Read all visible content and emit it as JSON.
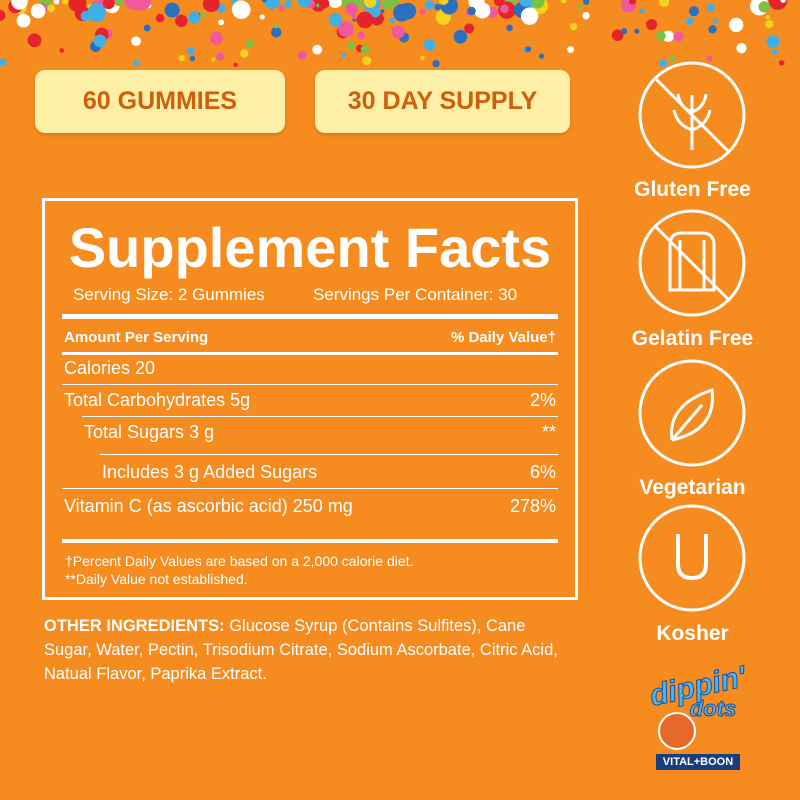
{
  "badges": [
    "60 GUMMIES",
    "30 DAY SUPPLY"
  ],
  "facts": {
    "title": "Supplement Facts",
    "serving_size": "Serving Size: 2 Gummies",
    "servings_per_container": "Servings Per Container: 30",
    "header": {
      "amount": "Amount Per Serving",
      "daily_value": "% Daily Value†"
    },
    "rows": [
      [
        "Calories 20",
        null
      ],
      [
        "Total Carbohydrates 5g",
        "2%"
      ],
      [
        "Total Sugars 3 g",
        "**"
      ],
      [
        "Includes 3 g Added Sugars",
        "6%"
      ],
      [
        "Vitamin C (as ascorbic acid) 250 mg",
        "278%"
      ]
    ],
    "footnotes": [
      "†Percent Daily Values are based on a 2,000 calorie diet.",
      "**Daily Value not established."
    ]
  },
  "ingredients": {
    "label": "OTHER INGREDIENTS:",
    "text": "Glucose Syrup (Contains Sulfites), Cane Sugar, Water, Pectin, Trisodium Citrate, Sodium Ascorbate, Citric Acid, Natual Flavor, Paprika Extract."
  },
  "features": [
    "Gluten Free",
    "Gelatin Free",
    "Vegetarian",
    "Kosher"
  ],
  "logo": {
    "brand_top": "dippin'",
    "brand_bottom": "dots",
    "tag": "VITAL+BOON"
  }
}
